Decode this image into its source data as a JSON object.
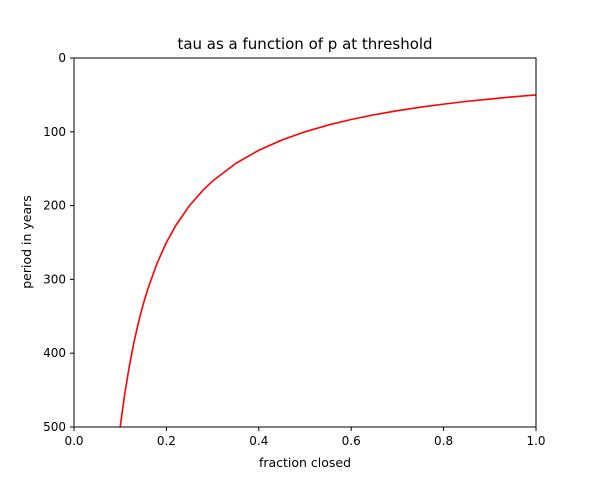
{
  "chart_data": {
    "type": "line",
    "title": "tau as a function of p at threshold",
    "xlabel": "fraction closed",
    "ylabel": "period in years",
    "xlim": [
      0.0,
      1.0
    ],
    "ylim": [
      500,
      0
    ],
    "y_inverted": true,
    "grid": false,
    "legend": "none",
    "x_ticks": [
      0.0,
      0.2,
      0.4,
      0.6,
      0.8,
      1.0
    ],
    "x_tick_labels": [
      "0.0",
      "0.2",
      "0.4",
      "0.6",
      "0.8",
      "1.0"
    ],
    "y_ticks": [
      0,
      100,
      200,
      300,
      400,
      500
    ],
    "y_tick_labels": [
      "0",
      "100",
      "200",
      "300",
      "400",
      "500"
    ],
    "series": [
      {
        "color": "#ff0000",
        "x": [
          0.1,
          0.11,
          0.12,
          0.13,
          0.14,
          0.15,
          0.16,
          0.18,
          0.2,
          0.22,
          0.25,
          0.28,
          0.3,
          0.35,
          0.4,
          0.45,
          0.5,
          0.55,
          0.6,
          0.65,
          0.7,
          0.75,
          0.8,
          0.85,
          0.9,
          0.95,
          1.0
        ],
        "y": [
          500,
          454.5,
          416.7,
          384.6,
          357.1,
          333.3,
          312.5,
          277.8,
          250,
          227.3,
          200,
          178.6,
          166.7,
          142.9,
          125,
          111.1,
          100,
          90.9,
          83.3,
          76.9,
          71.4,
          66.7,
          62.5,
          58.8,
          55.6,
          52.6,
          50
        ]
      }
    ]
  }
}
